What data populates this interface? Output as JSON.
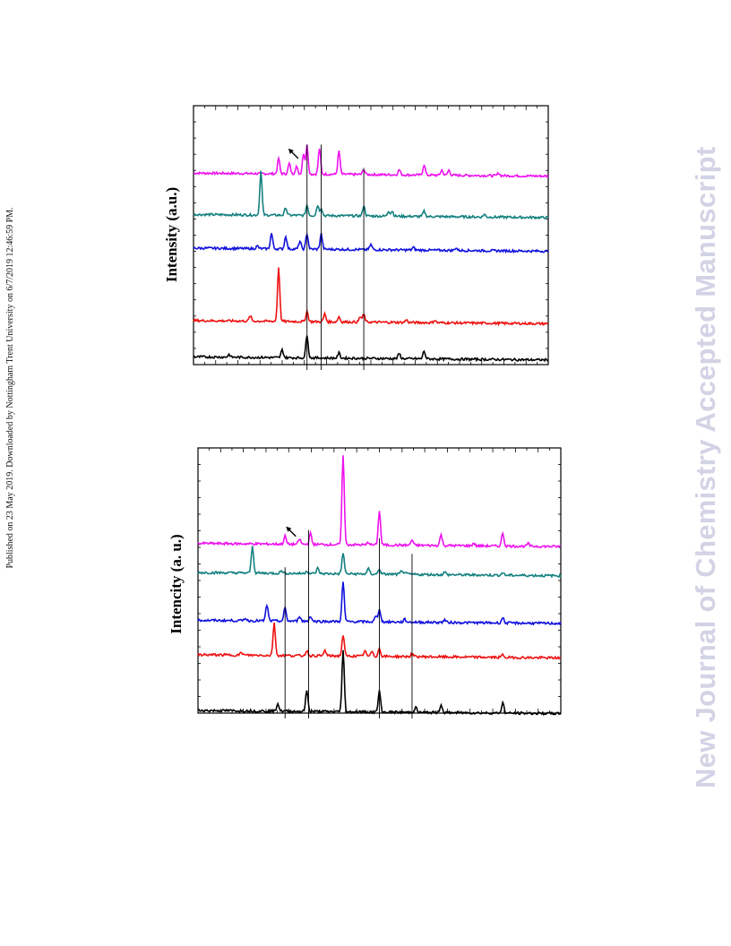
{
  "page": {
    "side_note": "Published on 23 May 2019. Downloaded by Nottingham Trent University on 6/7/2019 12:46:59 PM.",
    "watermark": "New Journal of Chemistry Accepted Manuscript"
  },
  "colors": {
    "magenta": "#ee11ee",
    "teal": "#138080",
    "blue": "#1111dd",
    "red": "#ee1111",
    "black": "#000000"
  },
  "chart_data": [
    {
      "type": "line",
      "title": "",
      "xlabel": "",
      "ylabel": "Intensity (a.u.)",
      "grid": false,
      "legend": "none",
      "x_range": [
        0,
        1
      ],
      "series_note": "stacked diffractograms, offsets in arbitrary units (y up, 0-100)",
      "series": [
        {
          "color": "magenta",
          "offset": 74,
          "peaks": [
            [
              0.24,
              6
            ],
            [
              0.27,
              4
            ],
            [
              0.29,
              3
            ],
            [
              0.31,
              8
            ],
            [
              0.32,
              11
            ],
            [
              0.355,
              10
            ],
            [
              0.41,
              9
            ],
            [
              0.48,
              2
            ],
            [
              0.58,
              2
            ],
            [
              0.65,
              4
            ],
            [
              0.7,
              2
            ],
            [
              0.72,
              2
            ],
            [
              0.86,
              1
            ]
          ]
        },
        {
          "color": "teal",
          "offset": 58,
          "peaks": [
            [
              0.19,
              17
            ],
            [
              0.26,
              3
            ],
            [
              0.32,
              4
            ],
            [
              0.35,
              4
            ],
            [
              0.36,
              3
            ],
            [
              0.48,
              4
            ],
            [
              0.55,
              2
            ],
            [
              0.56,
              2
            ],
            [
              0.65,
              2
            ],
            [
              0.82,
              1
            ]
          ]
        },
        {
          "color": "blue",
          "offset": 45,
          "peaks": [
            [
              0.18,
              1
            ],
            [
              0.22,
              6
            ],
            [
              0.26,
              5
            ],
            [
              0.3,
              3
            ],
            [
              0.32,
              6
            ],
            [
              0.36,
              6
            ],
            [
              0.5,
              2
            ],
            [
              0.62,
              1
            ],
            [
              0.74,
              1
            ]
          ]
        },
        {
          "color": "red",
          "offset": 17,
          "peaks": [
            [
              0.16,
              2
            ],
            [
              0.24,
              21
            ],
            [
              0.32,
              4
            ],
            [
              0.37,
              3
            ],
            [
              0.41,
              2
            ],
            [
              0.47,
              2
            ],
            [
              0.48,
              3
            ],
            [
              0.6,
              1
            ],
            [
              0.68,
              1
            ]
          ]
        },
        {
          "color": "black",
          "offset": 3,
          "peaks": [
            [
              0.1,
              1
            ],
            [
              0.25,
              3
            ],
            [
              0.32,
              9
            ],
            [
              0.41,
              2
            ],
            [
              0.58,
              2
            ],
            [
              0.65,
              3
            ]
          ]
        }
      ],
      "ref_lines": [
        0.32,
        0.36,
        0.48
      ],
      "ref_line_tops": [
        85,
        85,
        76
      ],
      "arrow": {
        "x": 0.285,
        "y": 81
      }
    },
    {
      "type": "line",
      "title": "",
      "xlabel": "",
      "ylabel": "Intencity (a. u.)",
      "grid": false,
      "legend": "none",
      "x_range": [
        0,
        1
      ],
      "series_note": "stacked diffractograms, offsets in arbitrary units (y up, 0-100)",
      "series": [
        {
          "color": "magenta",
          "offset": 64,
          "peaks": [
            [
              0.24,
              3
            ],
            [
              0.28,
              2
            ],
            [
              0.31,
              4
            ],
            [
              0.4,
              34
            ],
            [
              0.47,
              1
            ],
            [
              0.5,
              13
            ],
            [
              0.59,
              2
            ],
            [
              0.67,
              4
            ],
            [
              0.76,
              1
            ],
            [
              0.84,
              5
            ],
            [
              0.91,
              1
            ]
          ]
        },
        {
          "color": "teal",
          "offset": 53,
          "peaks": [
            [
              0.15,
              10
            ],
            [
              0.23,
              1
            ],
            [
              0.3,
              1
            ],
            [
              0.33,
              2
            ],
            [
              0.4,
              8
            ],
            [
              0.47,
              2
            ],
            [
              0.5,
              2
            ],
            [
              0.56,
              1
            ],
            [
              0.57,
              1
            ],
            [
              0.68,
              1
            ],
            [
              0.84,
              1
            ]
          ]
        },
        {
          "color": "blue",
          "offset": 35,
          "peaks": [
            [
              0.13,
              1
            ],
            [
              0.19,
              6
            ],
            [
              0.24,
              5
            ],
            [
              0.28,
              2
            ],
            [
              0.31,
              2
            ],
            [
              0.4,
              15
            ],
            [
              0.49,
              2
            ],
            [
              0.5,
              5
            ],
            [
              0.57,
              1
            ],
            [
              0.68,
              1
            ],
            [
              0.84,
              2
            ]
          ]
        },
        {
          "color": "red",
          "offset": 22,
          "peaks": [
            [
              0.12,
              1
            ],
            [
              0.21,
              12
            ],
            [
              0.3,
              2
            ],
            [
              0.35,
              2
            ],
            [
              0.4,
              8
            ],
            [
              0.46,
              2
            ],
            [
              0.48,
              2
            ],
            [
              0.5,
              3
            ],
            [
              0.59,
              1
            ],
            [
              0.84,
              1
            ]
          ]
        },
        {
          "color": "black",
          "offset": 1,
          "peaks": [
            [
              0.22,
              3
            ],
            [
              0.3,
              8
            ],
            [
              0.4,
              23
            ],
            [
              0.5,
              8
            ],
            [
              0.6,
              2
            ],
            [
              0.67,
              3
            ],
            [
              0.84,
              4
            ]
          ]
        }
      ],
      "ref_lines": [
        0.24,
        0.305,
        0.5,
        0.59
      ],
      "ref_line_tops": [
        55,
        69,
        66,
        60
      ],
      "arrow": {
        "x": 0.26,
        "y": 68
      }
    }
  ]
}
